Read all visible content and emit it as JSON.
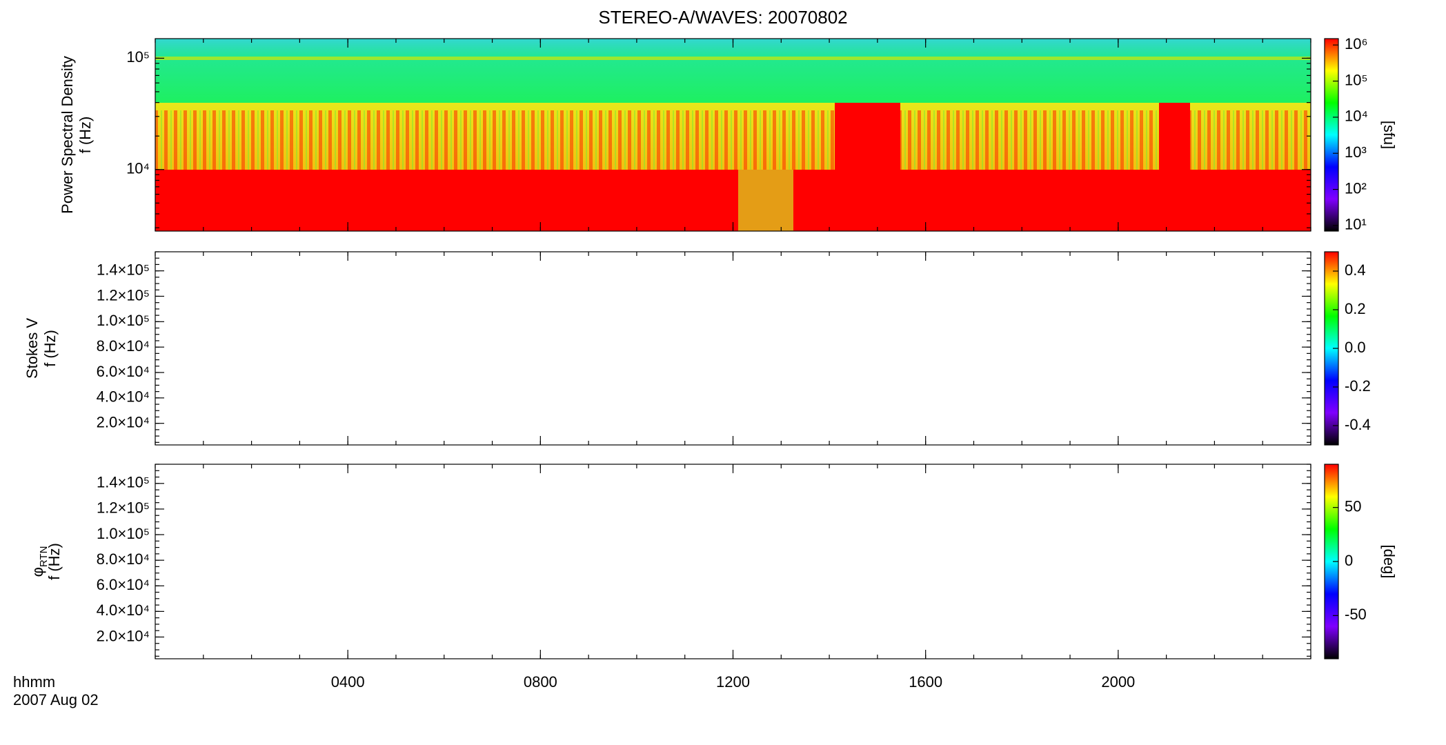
{
  "title": "STEREO-A/WAVES: 20070802",
  "x_axis": {
    "label": "hhmm",
    "sublabel": "2007 Aug 02",
    "xlim": [
      0,
      24
    ],
    "xticks": [
      {
        "value": 4,
        "label": "0400"
      },
      {
        "value": 8,
        "label": "0800"
      },
      {
        "value": 12,
        "label": "1200"
      },
      {
        "value": 16,
        "label": "1600"
      },
      {
        "value": 20,
        "label": "2000"
      }
    ]
  },
  "colormap": [
    "#000000",
    "#7f00ff",
    "#0000ff",
    "#00ffff",
    "#00ff00",
    "#ffff00",
    "#ff0000"
  ],
  "chart_data": [
    {
      "type": "spectrogram",
      "quantity": "Power Spectral Density",
      "ylabel": "f (Hz)",
      "ylog": true,
      "ylim": [
        2800,
        150000
      ],
      "yticks": [
        {
          "value": 10000,
          "label": "10⁴"
        },
        {
          "value": 100000,
          "label": "10⁵"
        }
      ],
      "clog": true,
      "clim": [
        7,
        1500000
      ],
      "colorbar_label": "[sfu]",
      "cticks": [
        {
          "value": 10,
          "label": "10¹"
        },
        {
          "value": 100,
          "label": "10²"
        },
        {
          "value": 1000,
          "label": "10³"
        },
        {
          "value": 10000,
          "label": "10⁴"
        },
        {
          "value": 100000,
          "label": "10⁵"
        },
        {
          "value": 1000000,
          "label": "10⁶"
        }
      ]
    },
    {
      "type": "spectrogram",
      "quantity": "Stokes V",
      "ylabel": "f (Hz)",
      "ylog": false,
      "ylim": [
        3000,
        155000
      ],
      "yticks": [
        {
          "value": 20000,
          "label": "2.0×10⁴"
        },
        {
          "value": 40000,
          "label": "4.0×10⁴"
        },
        {
          "value": 60000,
          "label": "6.0×10⁴"
        },
        {
          "value": 80000,
          "label": "8.0×10⁴"
        },
        {
          "value": 100000,
          "label": "1.0×10⁵"
        },
        {
          "value": 120000,
          "label": "1.2×10⁵"
        },
        {
          "value": 140000,
          "label": "1.4×10⁵"
        }
      ],
      "clog": false,
      "clim": [
        -0.5,
        0.5
      ],
      "cticks": [
        {
          "value": -0.4,
          "label": "-0.4"
        },
        {
          "value": -0.2,
          "label": "-0.2"
        },
        {
          "value": 0,
          "label": "0.0"
        },
        {
          "value": 0.2,
          "label": "0.2"
        },
        {
          "value": 0.4,
          "label": "0.4"
        }
      ]
    },
    {
      "type": "spectrogram",
      "quantity": "φ",
      "quantity_subscript": "RTN",
      "ylabel": "f (Hz)",
      "ylog": false,
      "ylim": [
        3000,
        155000
      ],
      "yticks": [
        {
          "value": 20000,
          "label": "2.0×10⁴"
        },
        {
          "value": 40000,
          "label": "4.0×10⁴"
        },
        {
          "value": 60000,
          "label": "6.0×10⁴"
        },
        {
          "value": 80000,
          "label": "8.0×10⁴"
        },
        {
          "value": 100000,
          "label": "1.0×10⁵"
        },
        {
          "value": 120000,
          "label": "1.2×10⁵"
        },
        {
          "value": 140000,
          "label": "1.4×10⁵"
        }
      ],
      "clog": false,
      "clim": [
        -90,
        90
      ],
      "colorbar_label": "[deg]",
      "cticks": [
        -50,
        0,
        50
      ]
    }
  ]
}
